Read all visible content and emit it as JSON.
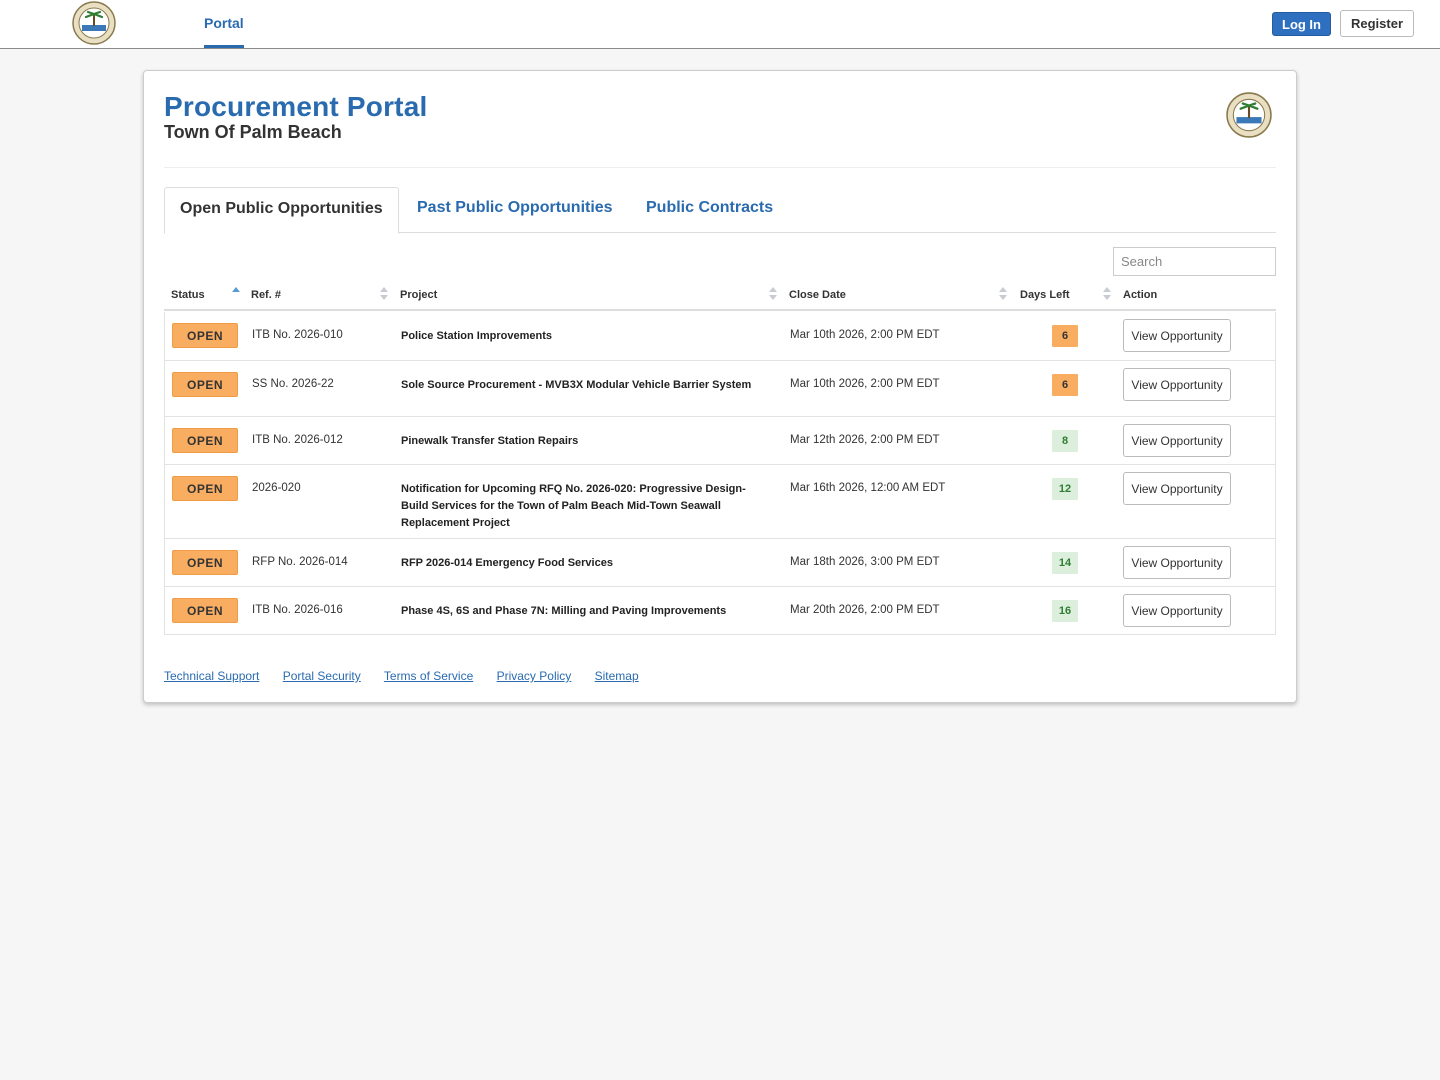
{
  "nav": {
    "portal_label": "Portal",
    "login_label": "Log In",
    "register_label": "Register"
  },
  "header": {
    "title": "Procurement Portal",
    "subtitle": "Town Of Palm Beach"
  },
  "tabs": [
    {
      "label": "Open Public Opportunities",
      "active": true
    },
    {
      "label": "Past Public Opportunities",
      "active": false
    },
    {
      "label": "Public Contracts",
      "active": false
    }
  ],
  "search": {
    "placeholder": "Search",
    "value": ""
  },
  "table": {
    "columns": [
      "Status",
      "Ref. #",
      "Project",
      "Close Date",
      "Days Left",
      "Action"
    ],
    "sort": {
      "column": "Status",
      "direction": "ascending"
    },
    "rows": [
      {
        "status": "OPEN",
        "ref": "ITB No. 2026-010",
        "project": "Police Station Improvements",
        "close_date": "Mar 10th 2026, 2:00 PM EDT",
        "days_left": "6",
        "days_status": "warn",
        "action": "View Opportunity"
      },
      {
        "status": "OPEN",
        "ref": "SS No. 2026-22",
        "project": "Sole Source Procurement - MVB3X Modular Vehicle Barrier System",
        "close_date": "Mar 10th 2026, 2:00 PM EDT",
        "days_left": "6",
        "days_status": "warn",
        "action": "View Opportunity"
      },
      {
        "status": "OPEN",
        "ref": "ITB No. 2026-012",
        "project": "Pinewalk Transfer Station Repairs",
        "close_date": "Mar 12th 2026, 2:00 PM EDT",
        "days_left": "8",
        "days_status": "ok",
        "action": "View Opportunity"
      },
      {
        "status": "OPEN",
        "ref": "2026-020",
        "project": "Notification for Upcoming RFQ No. 2026-020: Progressive Design-Build Services for the Town of Palm Beach Mid-Town Seawall Replacement Project",
        "close_date": "Mar 16th 2026, 12:00 AM EDT",
        "days_left": "12",
        "days_status": "ok",
        "action": "View Opportunity"
      },
      {
        "status": "OPEN",
        "ref": "RFP No. 2026-014",
        "project": "RFP 2026-014 Emergency Food Services",
        "close_date": "Mar 18th 2026, 3:00 PM EDT",
        "days_left": "14",
        "days_status": "ok",
        "action": "View Opportunity"
      },
      {
        "status": "OPEN",
        "ref": "ITB No. 2026-016",
        "project": "Phase 4S, 6S and Phase 7N: Milling and Paving Improvements",
        "close_date": "Mar 20th 2026, 2:00 PM EDT",
        "days_left": "16",
        "days_status": "ok",
        "action": "View Opportunity"
      }
    ]
  },
  "footer": {
    "links": [
      "Technical Support",
      "Portal Security",
      "Terms of Service",
      "Privacy Policy",
      "Sitemap"
    ]
  },
  "icons": {
    "seal": "town-seal-icon",
    "sort": "sort-icon"
  },
  "colors": {
    "brand_blue": "#2a6bb0",
    "open_badge": "#f8ad61",
    "days_ok": "#2e7d32"
  }
}
